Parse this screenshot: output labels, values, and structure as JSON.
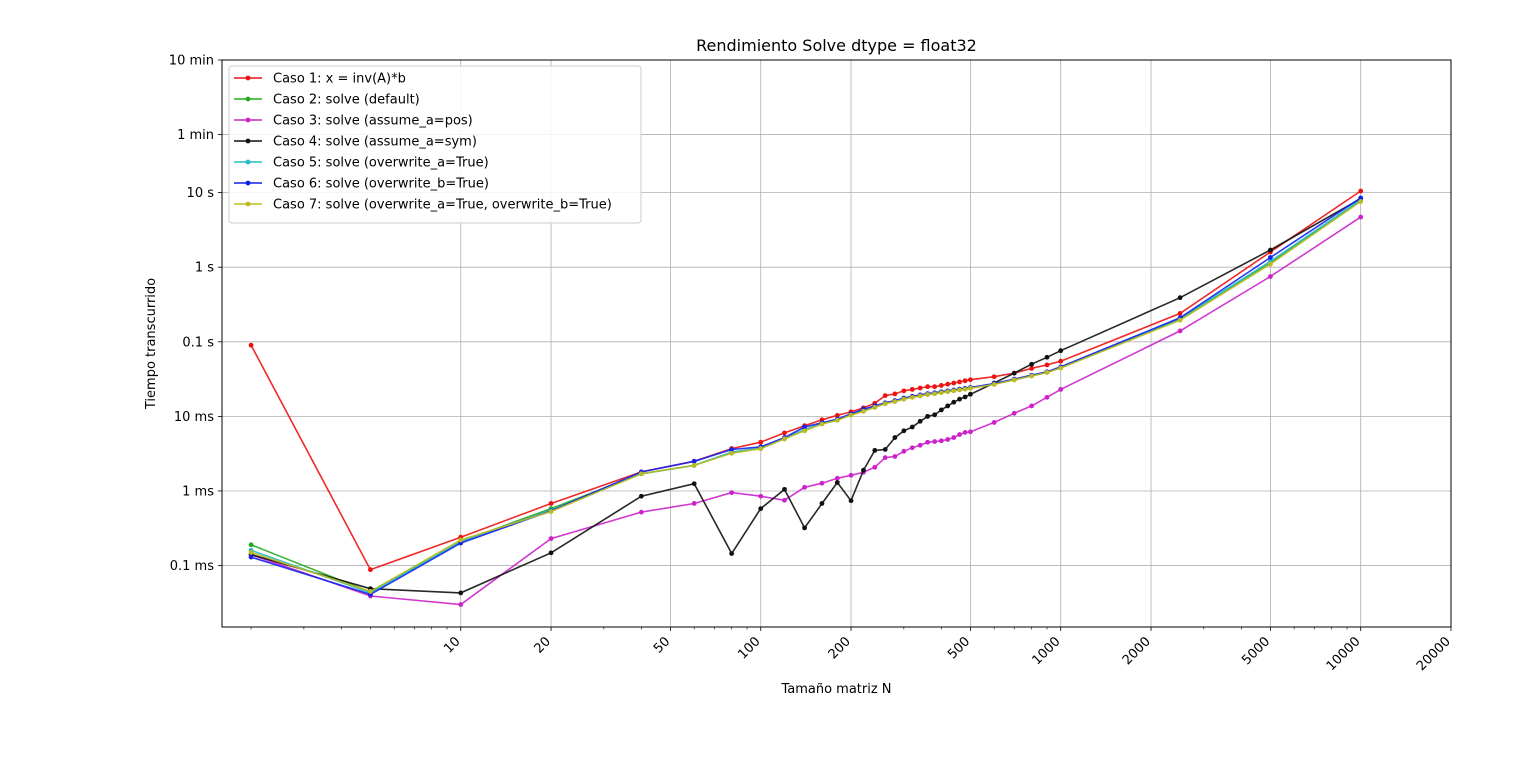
{
  "chart_data": {
    "type": "line",
    "title": "Rendimiento Solve dtype = float32",
    "xlabel": "Tamaño matriz N",
    "ylabel": "Tiempo transcurrido",
    "xscale": "log",
    "yscale": "log",
    "xlim": [
      1.6,
      20000
    ],
    "ylim": [
      1.5e-05,
      600
    ],
    "grid": true,
    "legend_position": "top-left",
    "x_ticks": [
      {
        "value": 10,
        "label": "10"
      },
      {
        "value": 20,
        "label": "20"
      },
      {
        "value": 50,
        "label": "50"
      },
      {
        "value": 100,
        "label": "100"
      },
      {
        "value": 200,
        "label": "200"
      },
      {
        "value": 500,
        "label": "500"
      },
      {
        "value": 1000,
        "label": "1000"
      },
      {
        "value": 2000,
        "label": "2000"
      },
      {
        "value": 5000,
        "label": "5000"
      },
      {
        "value": 10000,
        "label": "10000"
      },
      {
        "value": 20000,
        "label": "20000"
      }
    ],
    "y_ticks": [
      {
        "value": 0.0001,
        "label": "0.1 ms"
      },
      {
        "value": 0.001,
        "label": "1 ms"
      },
      {
        "value": 0.01,
        "label": "10 ms"
      },
      {
        "value": 0.1,
        "label": "0.1 s"
      },
      {
        "value": 1,
        "label": "1 s"
      },
      {
        "value": 10,
        "label": "10 s"
      },
      {
        "value": 60,
        "label": "1 min"
      },
      {
        "value": 600,
        "label": "10 min"
      }
    ],
    "series": [
      {
        "name": "Caso 1: x = inv(A)*b",
        "color": "#ee1111",
        "x": [
          2,
          5,
          10,
          20,
          40,
          60,
          80,
          100,
          120,
          140,
          160,
          180,
          200,
          220,
          240,
          260,
          280,
          300,
          320,
          340,
          360,
          380,
          400,
          420,
          440,
          460,
          480,
          500,
          600,
          700,
          800,
          900,
          1000,
          2500,
          5000,
          10000
        ],
        "y": [
          0.09,
          8.8e-05,
          0.00024,
          0.00068,
          0.0018,
          0.0025,
          0.0037,
          0.0045,
          0.006,
          0.0075,
          0.009,
          0.0103,
          0.0115,
          0.013,
          0.015,
          0.019,
          0.02,
          0.022,
          0.023,
          0.024,
          0.025,
          0.025,
          0.026,
          0.027,
          0.028,
          0.029,
          0.03,
          0.031,
          0.034,
          0.038,
          0.044,
          0.049,
          0.055,
          0.24,
          1.6,
          10.5
        ]
      },
      {
        "name": "Caso 2: solve (default)",
        "color": "#22aa22",
        "x": [
          2,
          5,
          10,
          20,
          40,
          60,
          80,
          100,
          120,
          140,
          160,
          180,
          200,
          220,
          240,
          260,
          280,
          300,
          320,
          340,
          360,
          380,
          400,
          420,
          440,
          460,
          480,
          500,
          600,
          700,
          800,
          900,
          1000,
          2500,
          5000,
          10000
        ],
        "y": [
          0.00019,
          4.4e-05,
          0.00021,
          0.00058,
          0.0017,
          0.0022,
          0.0033,
          0.0037,
          0.005,
          0.0065,
          0.008,
          0.0089,
          0.0105,
          0.0118,
          0.0133,
          0.015,
          0.016,
          0.0172,
          0.0182,
          0.019,
          0.0198,
          0.0203,
          0.021,
          0.0216,
          0.0222,
          0.0228,
          0.0234,
          0.024,
          0.027,
          0.031,
          0.035,
          0.039,
          0.045,
          0.2,
          1.15,
          7.8
        ]
      },
      {
        "name": "Caso 3: solve (assume_a=pos)",
        "color": "#cc22cc",
        "x": [
          2,
          5,
          10,
          20,
          40,
          60,
          80,
          100,
          120,
          140,
          160,
          180,
          200,
          220,
          240,
          260,
          280,
          300,
          320,
          340,
          360,
          380,
          400,
          420,
          440,
          460,
          480,
          500,
          600,
          700,
          800,
          900,
          1000,
          2500,
          5000,
          10000
        ],
        "y": [
          0.00014,
          3.9e-05,
          3e-05,
          0.00023,
          0.00052,
          0.00068,
          0.00095,
          0.00085,
          0.00075,
          0.00112,
          0.00127,
          0.00148,
          0.00162,
          0.00178,
          0.00208,
          0.0028,
          0.0029,
          0.0034,
          0.0038,
          0.0041,
          0.0045,
          0.0046,
          0.0047,
          0.0049,
          0.0052,
          0.0057,
          0.0061,
          0.0062,
          0.0083,
          0.011,
          0.0138,
          0.018,
          0.023,
          0.14,
          0.75,
          4.7
        ]
      },
      {
        "name": "Caso 4: solve (assume_a=sym)",
        "color": "#111111",
        "x": [
          2,
          5,
          10,
          20,
          40,
          60,
          80,
          100,
          120,
          140,
          160,
          180,
          200,
          220,
          240,
          260,
          280,
          300,
          320,
          340,
          360,
          380,
          400,
          420,
          440,
          460,
          480,
          500,
          600,
          700,
          800,
          900,
          1000,
          2500,
          5000,
          10000
        ],
        "y": [
          0.00014,
          4.9e-05,
          4.3e-05,
          0.000148,
          0.00085,
          0.00125,
          0.000145,
          0.00058,
          0.00105,
          0.00032,
          0.00068,
          0.0013,
          0.00074,
          0.0019,
          0.0035,
          0.0036,
          0.0052,
          0.0064,
          0.0072,
          0.0086,
          0.01,
          0.0105,
          0.0122,
          0.0138,
          0.0155,
          0.017,
          0.0182,
          0.0198,
          0.028,
          0.038,
          0.05,
          0.062,
          0.076,
          0.39,
          1.7,
          8.3
        ]
      },
      {
        "name": "Caso 5: solve (overwrite_a=True)",
        "color": "#22bbcc",
        "x": [
          2,
          5,
          10,
          20,
          40,
          60,
          80,
          100,
          120,
          140,
          160,
          180,
          200,
          220,
          240,
          260,
          280,
          300,
          320,
          340,
          360,
          380,
          400,
          420,
          440,
          460,
          480,
          500,
          600,
          700,
          800,
          900,
          1000,
          2500,
          5000,
          10000
        ],
        "y": [
          0.00016,
          4.3e-05,
          0.00021,
          0.00055,
          0.0017,
          0.0022,
          0.0033,
          0.0038,
          0.0051,
          0.0066,
          0.0081,
          0.009,
          0.0106,
          0.0119,
          0.0134,
          0.015,
          0.016,
          0.0173,
          0.0183,
          0.0191,
          0.0199,
          0.0204,
          0.0211,
          0.0217,
          0.0223,
          0.0229,
          0.0235,
          0.0241,
          0.0272,
          0.0312,
          0.0352,
          0.0392,
          0.0455,
          0.205,
          1.2,
          8.0
        ]
      },
      {
        "name": "Caso 6: solve (overwrite_b=True)",
        "color": "#1122ee",
        "x": [
          2,
          5,
          10,
          20,
          40,
          60,
          80,
          100,
          120,
          140,
          160,
          180,
          200,
          220,
          240,
          260,
          280,
          300,
          320,
          340,
          360,
          380,
          400,
          420,
          440,
          460,
          480,
          500,
          600,
          700,
          800,
          900,
          1000,
          2500,
          5000,
          10000
        ],
        "y": [
          0.00013,
          4.1e-05,
          0.0002,
          0.00054,
          0.0018,
          0.0025,
          0.0036,
          0.0039,
          0.0052,
          0.0072,
          0.0082,
          0.0092,
          0.0108,
          0.0125,
          0.0138,
          0.0152,
          0.0163,
          0.0176,
          0.0186,
          0.0194,
          0.0202,
          0.0207,
          0.0214,
          0.022,
          0.0226,
          0.0232,
          0.0238,
          0.0244,
          0.0276,
          0.0316,
          0.0356,
          0.0396,
          0.046,
          0.21,
          1.35,
          8.5
        ]
      },
      {
        "name": "Caso 7: solve (overwrite_a=True, overwrite_b=True)",
        "color": "#bbbb22",
        "x": [
          2,
          5,
          10,
          20,
          40,
          60,
          80,
          100,
          120,
          140,
          160,
          180,
          200,
          220,
          240,
          260,
          280,
          300,
          320,
          340,
          360,
          380,
          400,
          420,
          440,
          460,
          480,
          500,
          600,
          700,
          800,
          900,
          1000,
          2500,
          5000,
          10000
        ],
        "y": [
          0.00015,
          4.5e-05,
          0.00022,
          0.00053,
          0.0017,
          0.0022,
          0.0032,
          0.0037,
          0.005,
          0.0064,
          0.0079,
          0.0089,
          0.0104,
          0.0117,
          0.0132,
          0.0148,
          0.0158,
          0.017,
          0.018,
          0.0188,
          0.0196,
          0.0201,
          0.0208,
          0.0214,
          0.022,
          0.0226,
          0.0232,
          0.0238,
          0.0268,
          0.0308,
          0.0348,
          0.0388,
          0.0445,
          0.195,
          1.1,
          7.6
        ]
      }
    ]
  }
}
